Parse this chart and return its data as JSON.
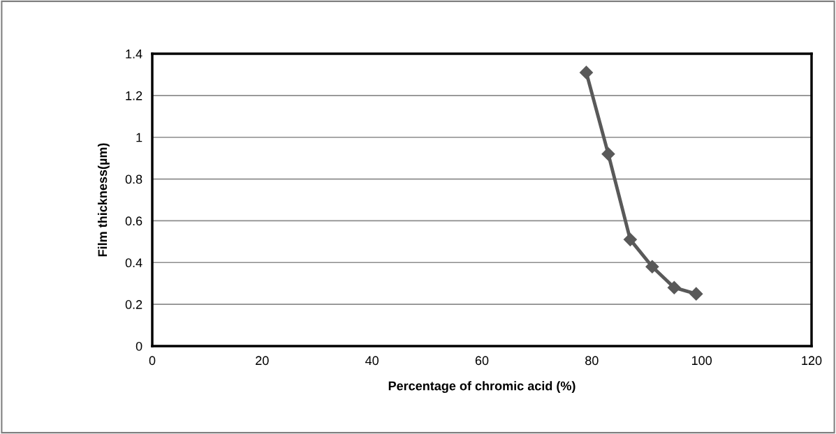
{
  "chart_data": {
    "type": "line",
    "xlabel": "Percentage of chromic acid (%)",
    "ylabel": "Film thickness(µm)",
    "x": [
      79,
      83,
      87,
      91,
      95,
      99
    ],
    "series": [
      {
        "color": "#595959",
        "values": [
          1.31,
          0.92,
          0.51,
          0.38,
          0.28,
          0.25
        ]
      }
    ],
    "xlim": [
      0,
      120
    ],
    "xticks": [
      0,
      20,
      40,
      60,
      80,
      100,
      120
    ],
    "ylim": [
      0,
      1.4
    ],
    "yticks": [
      0,
      0.2,
      0.4,
      0.6,
      0.8,
      1,
      1.2,
      1.4
    ],
    "grid": "y",
    "marker": "diamond",
    "line_style": "solid",
    "legend": false
  }
}
